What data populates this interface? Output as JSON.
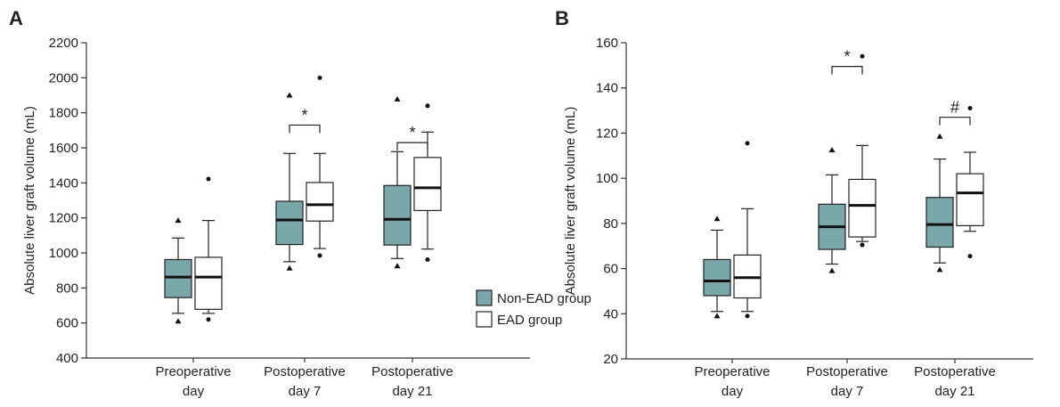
{
  "chart_data": [
    {
      "type": "boxplot",
      "panel_label": "A",
      "ylabel": "Absolute liver graft volume (mL)",
      "ylim": [
        400,
        2200
      ],
      "yticks": [
        400,
        600,
        800,
        1000,
        1200,
        1400,
        1600,
        1800,
        2000,
        2200
      ],
      "categories": [
        [
          "Preoperative",
          "day"
        ],
        [
          "Postoperative",
          "day 7"
        ],
        [
          "Postoperative",
          "day 21"
        ]
      ],
      "series": [
        {
          "name": "Non-EAD group",
          "color": "#7aa7aa",
          "boxes": [
            {
              "whisker_low": 655,
              "q1": 745,
              "median": 862,
              "q3": 962,
              "whisker_high": 1085,
              "outliers": [
                610,
                1185
              ]
            },
            {
              "whisker_low": 950,
              "q1": 1048,
              "median": 1188,
              "q3": 1295,
              "whisker_high": 1568,
              "outliers": [
                912,
                1900
              ]
            },
            {
              "whisker_low": 968,
              "q1": 1045,
              "median": 1192,
              "q3": 1385,
              "whisker_high": 1578,
              "outliers": [
                925,
                1878
              ]
            }
          ]
        },
        {
          "name": "EAD group",
          "color": "#ffffff",
          "boxes": [
            {
              "whisker_low": 655,
              "q1": 678,
              "median": 862,
              "q3": 975,
              "whisker_high": 1185,
              "outliers": [
                620,
                1422
              ]
            },
            {
              "whisker_low": 1025,
              "q1": 1182,
              "median": 1275,
              "q3": 1402,
              "whisker_high": 1568,
              "outliers": [
                985,
                2000
              ]
            },
            {
              "whisker_low": 1022,
              "q1": 1242,
              "median": 1372,
              "q3": 1545,
              "whisker_high": 1690,
              "outliers": [
                962,
                1840
              ]
            }
          ]
        }
      ],
      "significance": [
        {
          "category": 1,
          "symbol": "*",
          "y": 1730
        },
        {
          "category": 2,
          "symbol": "*",
          "y": 1630
        }
      ],
      "legend": {
        "position": "lower-right",
        "entries": [
          "Non-EAD group",
          "EAD group"
        ]
      }
    },
    {
      "type": "boxplot",
      "panel_label": "B",
      "ylabel": "Absolute liver graft volume (mL)",
      "ylim": [
        20,
        160
      ],
      "yticks": [
        20,
        40,
        60,
        80,
        100,
        120,
        140,
        160
      ],
      "categories": [
        [
          "Preoperative",
          "day"
        ],
        [
          "Postoperative",
          "day 7"
        ],
        [
          "Postoperative",
          "day 21"
        ]
      ],
      "series": [
        {
          "name": "Non-EAD group",
          "color": "#7aa7aa",
          "boxes": [
            {
              "whisker_low": 41,
              "q1": 48,
              "median": 54.5,
              "q3": 64,
              "whisker_high": 77,
              "outliers": [
                39,
                82
              ]
            },
            {
              "whisker_low": 62,
              "q1": 68.5,
              "median": 78.5,
              "q3": 88.5,
              "whisker_high": 101.5,
              "outliers": [
                59,
                112.5
              ]
            },
            {
              "whisker_low": 62.5,
              "q1": 69.5,
              "median": 79.5,
              "q3": 91.5,
              "whisker_high": 108.5,
              "outliers": [
                59.5,
                118.5
              ]
            }
          ]
        },
        {
          "name": "EAD group",
          "color": "#ffffff",
          "boxes": [
            {
              "whisker_low": 41,
              "q1": 47,
              "median": 56,
              "q3": 66,
              "whisker_high": 86.5,
              "outliers": [
                39,
                115.5
              ]
            },
            {
              "whisker_low": 72,
              "q1": 74,
              "median": 88,
              "q3": 99.5,
              "whisker_high": 114.5,
              "outliers": [
                70.5,
                154
              ]
            },
            {
              "whisker_low": 76.5,
              "q1": 79,
              "median": 93.5,
              "q3": 102,
              "whisker_high": 111.5,
              "outliers": [
                65.5,
                131
              ]
            }
          ]
        }
      ],
      "significance": [
        {
          "category": 1,
          "symbol": "*",
          "y": 149.5
        },
        {
          "category": 2,
          "symbol": "#",
          "y": 127
        }
      ]
    }
  ]
}
